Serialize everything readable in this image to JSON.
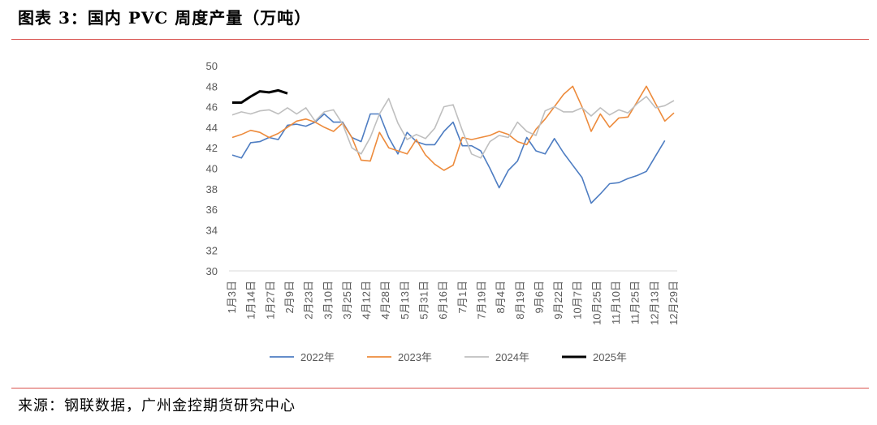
{
  "header": {
    "title": "图表 3：国内 PVC 周度产量（万吨）"
  },
  "footer": {
    "source": "来源：钢联数据，广州金控期货研究中心"
  },
  "chart_data": {
    "type": "line",
    "title": "图表 3：国内 PVC 周度产量（万吨）",
    "ylabel": "万吨",
    "ylim": [
      30,
      50
    ],
    "yticks": [
      30,
      32,
      34,
      36,
      38,
      40,
      42,
      44,
      46,
      48,
      50
    ],
    "x_tick_labels": [
      "1月3日",
      "1月14日",
      "1月27日",
      "2月9日",
      "2月23日",
      "3月10日",
      "3月25日",
      "4月12日",
      "4月28日",
      "5月13日",
      "5月31日",
      "6月16日",
      "7月1日",
      "7月19日",
      "8月4日",
      "8月19日",
      "9月6日",
      "9月22日",
      "10月7日",
      "10月25日",
      "11月10日",
      "11月25日",
      "12月13日",
      "12月29日"
    ],
    "grid": false,
    "legend": "bottom",
    "series": [
      {
        "name": "2022年",
        "color": "#4e7dc2",
        "values": [
          41.3,
          41.0,
          42.5,
          42.6,
          43.0,
          42.8,
          44.2,
          44.3,
          44.1,
          44.5,
          45.3,
          44.5,
          44.5,
          43.0,
          42.6,
          45.3,
          45.3,
          43.0,
          41.4,
          43.5,
          42.6,
          42.3,
          42.3,
          43.6,
          44.5,
          42.2,
          42.2,
          41.7,
          40.0,
          38.1,
          39.8,
          40.7,
          43.0,
          41.7,
          41.4,
          42.9,
          41.5,
          40.3,
          39.1,
          36.6,
          37.5,
          38.5,
          38.6,
          39.0,
          39.3,
          39.7,
          41.2,
          42.7
        ]
      },
      {
        "name": "2023年",
        "color": "#ed8b3c",
        "values": [
          43.0,
          43.3,
          43.7,
          43.5,
          43.0,
          43.4,
          44.0,
          44.6,
          44.8,
          44.5,
          44.0,
          43.6,
          44.4,
          43.0,
          40.8,
          40.7,
          43.5,
          42.0,
          41.7,
          41.4,
          42.8,
          41.3,
          40.4,
          39.8,
          40.3,
          43.0,
          42.8,
          43.0,
          43.2,
          43.6,
          43.3,
          42.6,
          42.3,
          43.8,
          44.8,
          46.0,
          47.2,
          48.0,
          46.0,
          43.6,
          45.3,
          44.0,
          44.9,
          45.0,
          46.5,
          48.0,
          46.3,
          44.6,
          45.4
        ]
      },
      {
        "name": "2024年",
        "color": "#bfbfbf",
        "values": [
          45.2,
          45.5,
          45.3,
          45.6,
          45.7,
          45.3,
          45.9,
          45.3,
          45.9,
          44.6,
          45.5,
          45.7,
          44.3,
          42.0,
          41.4,
          43.0,
          45.3,
          46.8,
          44.4,
          42.8,
          43.3,
          42.9,
          43.9,
          46.0,
          46.2,
          43.7,
          41.4,
          41.0,
          42.6,
          43.2,
          43.0,
          44.5,
          43.6,
          43.2,
          45.6,
          46.0,
          45.5,
          45.5,
          45.9,
          45.1,
          45.9,
          45.2,
          45.7,
          45.4,
          46.3,
          47.0,
          45.9,
          46.1,
          46.6
        ]
      },
      {
        "name": "2025年",
        "color": "#000000",
        "values": [
          46.4,
          46.4,
          47.0,
          47.5,
          47.4,
          47.6,
          47.3
        ]
      }
    ]
  }
}
